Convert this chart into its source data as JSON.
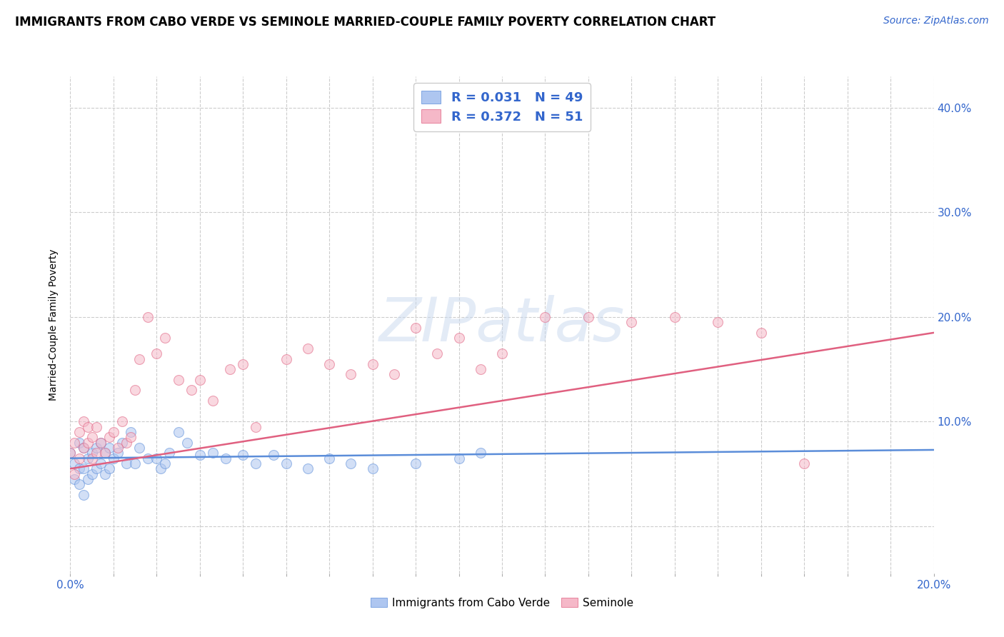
{
  "title": "IMMIGRANTS FROM CABO VERDE VS SEMINOLE MARRIED-COUPLE FAMILY POVERTY CORRELATION CHART",
  "source": "Source: ZipAtlas.com",
  "ylabel": "Married-Couple Family Poverty",
  "series": [
    {
      "name": "Immigrants from Cabo Verde",
      "color": "#aec6f0",
      "edge_color": "#5b8dd9",
      "R": 0.031,
      "N": 49,
      "x": [
        0.0,
        0.001,
        0.001,
        0.002,
        0.002,
        0.002,
        0.003,
        0.003,
        0.003,
        0.004,
        0.004,
        0.005,
        0.005,
        0.006,
        0.006,
        0.007,
        0.007,
        0.008,
        0.008,
        0.009,
        0.009,
        0.01,
        0.011,
        0.012,
        0.013,
        0.014,
        0.015,
        0.016,
        0.018,
        0.02,
        0.021,
        0.022,
        0.023,
        0.025,
        0.027,
        0.03,
        0.033,
        0.036,
        0.04,
        0.043,
        0.047,
        0.05,
        0.055,
        0.06,
        0.065,
        0.07,
        0.08,
        0.09,
        0.095
      ],
      "y": [
        0.07,
        0.06,
        0.045,
        0.04,
        0.055,
        0.08,
        0.03,
        0.055,
        0.075,
        0.045,
        0.065,
        0.05,
        0.07,
        0.055,
        0.075,
        0.06,
        0.08,
        0.05,
        0.07,
        0.055,
        0.075,
        0.065,
        0.07,
        0.08,
        0.06,
        0.09,
        0.06,
        0.075,
        0.065,
        0.065,
        0.055,
        0.06,
        0.07,
        0.09,
        0.08,
        0.068,
        0.07,
        0.065,
        0.068,
        0.06,
        0.068,
        0.06,
        0.055,
        0.065,
        0.06,
        0.055,
        0.06,
        0.065,
        0.07
      ],
      "trend_x": [
        0.0,
        0.2
      ],
      "trend_y": [
        0.065,
        0.073
      ]
    },
    {
      "name": "Seminole",
      "color": "#f5b8c8",
      "edge_color": "#e06080",
      "R": 0.372,
      "N": 51,
      "x": [
        0.0,
        0.001,
        0.001,
        0.002,
        0.002,
        0.003,
        0.003,
        0.004,
        0.004,
        0.005,
        0.005,
        0.006,
        0.006,
        0.007,
        0.008,
        0.009,
        0.01,
        0.011,
        0.012,
        0.013,
        0.014,
        0.015,
        0.016,
        0.018,
        0.02,
        0.022,
        0.025,
        0.028,
        0.03,
        0.033,
        0.037,
        0.04,
        0.043,
        0.05,
        0.055,
        0.06,
        0.065,
        0.07,
        0.075,
        0.08,
        0.085,
        0.09,
        0.095,
        0.1,
        0.11,
        0.12,
        0.13,
        0.14,
        0.15,
        0.16,
        0.17
      ],
      "y": [
        0.07,
        0.08,
        0.05,
        0.065,
        0.09,
        0.075,
        0.1,
        0.08,
        0.095,
        0.065,
        0.085,
        0.07,
        0.095,
        0.08,
        0.07,
        0.085,
        0.09,
        0.075,
        0.1,
        0.08,
        0.085,
        0.13,
        0.16,
        0.2,
        0.165,
        0.18,
        0.14,
        0.13,
        0.14,
        0.12,
        0.15,
        0.155,
        0.095,
        0.16,
        0.17,
        0.155,
        0.145,
        0.155,
        0.145,
        0.19,
        0.165,
        0.18,
        0.15,
        0.165,
        0.2,
        0.2,
        0.195,
        0.2,
        0.195,
        0.185,
        0.06
      ],
      "trend_x": [
        0.0,
        0.2
      ],
      "trend_y": [
        0.055,
        0.185
      ]
    }
  ],
  "xlim": [
    0.0,
    0.2
  ],
  "ylim": [
    -0.045,
    0.43
  ],
  "yticks": [
    0.0,
    0.1,
    0.2,
    0.3,
    0.4
  ],
  "right_ytick_labels": [
    "",
    "10.0%",
    "20.0%",
    "30.0%",
    "40.0%"
  ],
  "grid_color": "#cccccc",
  "background_color": "#ffffff",
  "legend_R_color": "#3366cc",
  "title_fontsize": 12,
  "marker_size": 100,
  "marker_alpha": 0.55,
  "watermark_text": "ZIPatlas",
  "watermark_color": "#c8d8ee",
  "source_color": "#3366cc"
}
